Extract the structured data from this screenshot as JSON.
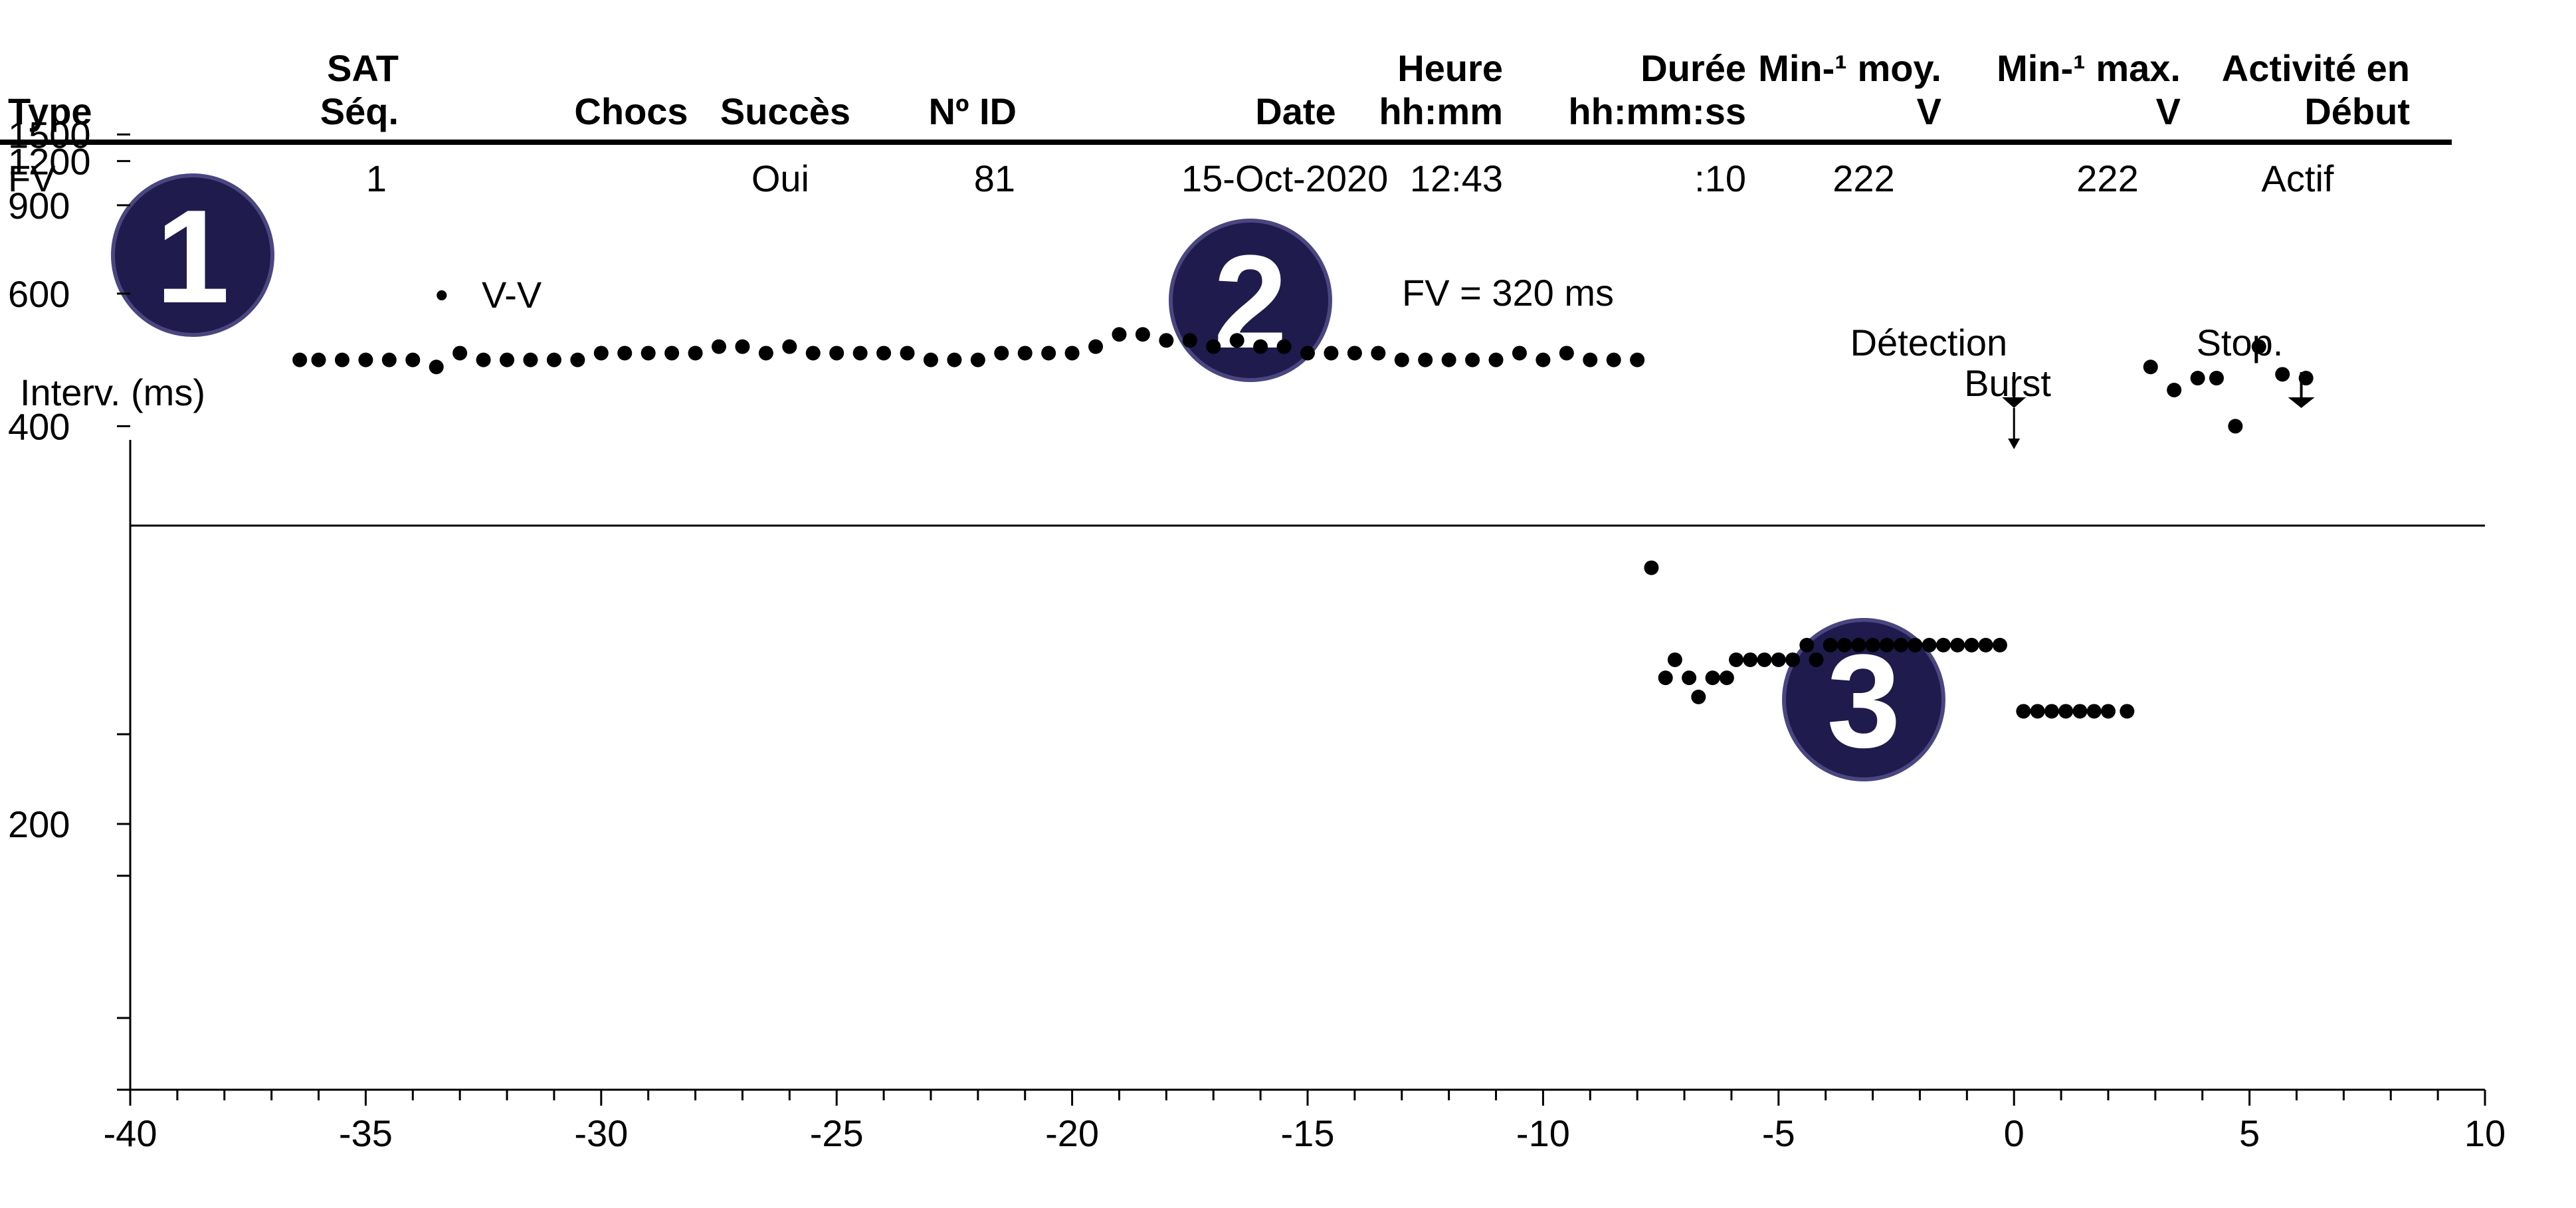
{
  "table": {
    "headers": [
      {
        "line1": "",
        "line2": "Type"
      },
      {
        "line1": "SAT",
        "line2": "Séq."
      },
      {
        "line1": "",
        "line2": "Chocs"
      },
      {
        "line1": "",
        "line2": "Succès"
      },
      {
        "line1": "",
        "line2": "Nº ID"
      },
      {
        "line1": "",
        "line2": "Date"
      },
      {
        "line1": "Heure",
        "line2": "hh:mm"
      },
      {
        "line1": "Durée",
        "line2": "hh:mm:ss"
      },
      {
        "line1": "Min-¹ moy.",
        "line2": "V"
      },
      {
        "line1": "Min-¹ max.",
        "line2": "V"
      },
      {
        "line1": "Activité en",
        "line2": "Début"
      }
    ],
    "row": [
      "FV",
      "1",
      "",
      "Oui",
      "81",
      "15-Oct-2020",
      "12:43",
      ":10",
      "222",
      "222",
      "Actif"
    ]
  },
  "badges": [
    "1",
    "2",
    "3"
  ],
  "legend": {
    "marker": "•",
    "label": "V-V"
  },
  "zone_label": "FV = 320 ms",
  "markers": [
    {
      "label": "Détection",
      "x": 0
    },
    {
      "label": "Burst",
      "x": 0
    },
    {
      "label": "Stop.",
      "x": 6.1
    }
  ],
  "chart_data": {
    "type": "scatter",
    "ylabel": "Interv. (ms)",
    "xlabel": "",
    "xlim": [
      -40,
      10
    ],
    "x_ticks": [
      -40,
      -35,
      -30,
      -25,
      -20,
      -15,
      -10,
      -5,
      0,
      5,
      10
    ],
    "y_ticks": [
      200,
      400,
      600,
      900,
      1200,
      1500
    ],
    "threshold": 320,
    "series": [
      {
        "name": "V-V",
        "x": [
          -36.4,
          -36.0,
          -35.5,
          -35.0,
          -34.5,
          -34.0,
          -33.5,
          -33.0,
          -32.5,
          -32.0,
          -31.5,
          -31.0,
          -30.5,
          -30.0,
          -29.5,
          -29.0,
          -28.5,
          -28.0,
          -27.5,
          -27.0,
          -26.5,
          -26.0,
          -25.5,
          -25.0,
          -24.5,
          -24.0,
          -23.5,
          -23.0,
          -22.5,
          -22.0,
          -21.5,
          -21.0,
          -20.5,
          -20.0,
          -19.5,
          -19.0,
          -18.5,
          -18.0,
          -17.5,
          -17.0,
          -16.5,
          -16.0,
          -15.5,
          -15.0,
          -14.5,
          -14.0,
          -13.5,
          -13.0,
          -12.5,
          -12.0,
          -11.5,
          -11.0,
          -10.5,
          -10.0,
          -9.5,
          -9.0,
          -8.5,
          -8.0,
          -7.7,
          -7.4,
          -7.2,
          -6.9,
          -6.7,
          -6.4,
          -6.1,
          -5.9,
          -5.6,
          -5.3,
          -5.0,
          -4.7,
          -4.4,
          -4.2,
          -3.9,
          -3.6,
          -3.3,
          -3.0,
          -2.7,
          -2.4,
          -2.1,
          -1.8,
          -1.5,
          -1.2,
          -0.9,
          -0.6,
          -0.3,
          0.2,
          0.5,
          0.8,
          1.1,
          1.4,
          1.7,
          2.0,
          2.4,
          2.9,
          3.4,
          3.9,
          4.3,
          4.7,
          5.2,
          5.7,
          6.2
        ],
        "y": [
          480,
          480,
          480,
          480,
          480,
          480,
          470,
          490,
          480,
          480,
          480,
          480,
          480,
          490,
          490,
          490,
          490,
          490,
          500,
          500,
          490,
          500,
          490,
          490,
          490,
          490,
          490,
          480,
          480,
          480,
          490,
          490,
          490,
          490,
          500,
          520,
          520,
          510,
          510,
          500,
          510,
          500,
          500,
          490,
          490,
          490,
          490,
          480,
          480,
          480,
          480,
          480,
          490,
          480,
          490,
          480,
          480,
          480,
          295,
          245,
          252,
          245,
          238,
          245,
          245,
          252,
          252,
          252,
          252,
          252,
          258,
          252,
          258,
          258,
          258,
          258,
          258,
          258,
          258,
          258,
          258,
          258,
          258,
          258,
          258,
          233,
          233,
          233,
          233,
          233,
          233,
          233,
          233,
          470,
          440,
          455,
          455,
          400,
          500,
          460,
          455
        ]
      }
    ]
  }
}
